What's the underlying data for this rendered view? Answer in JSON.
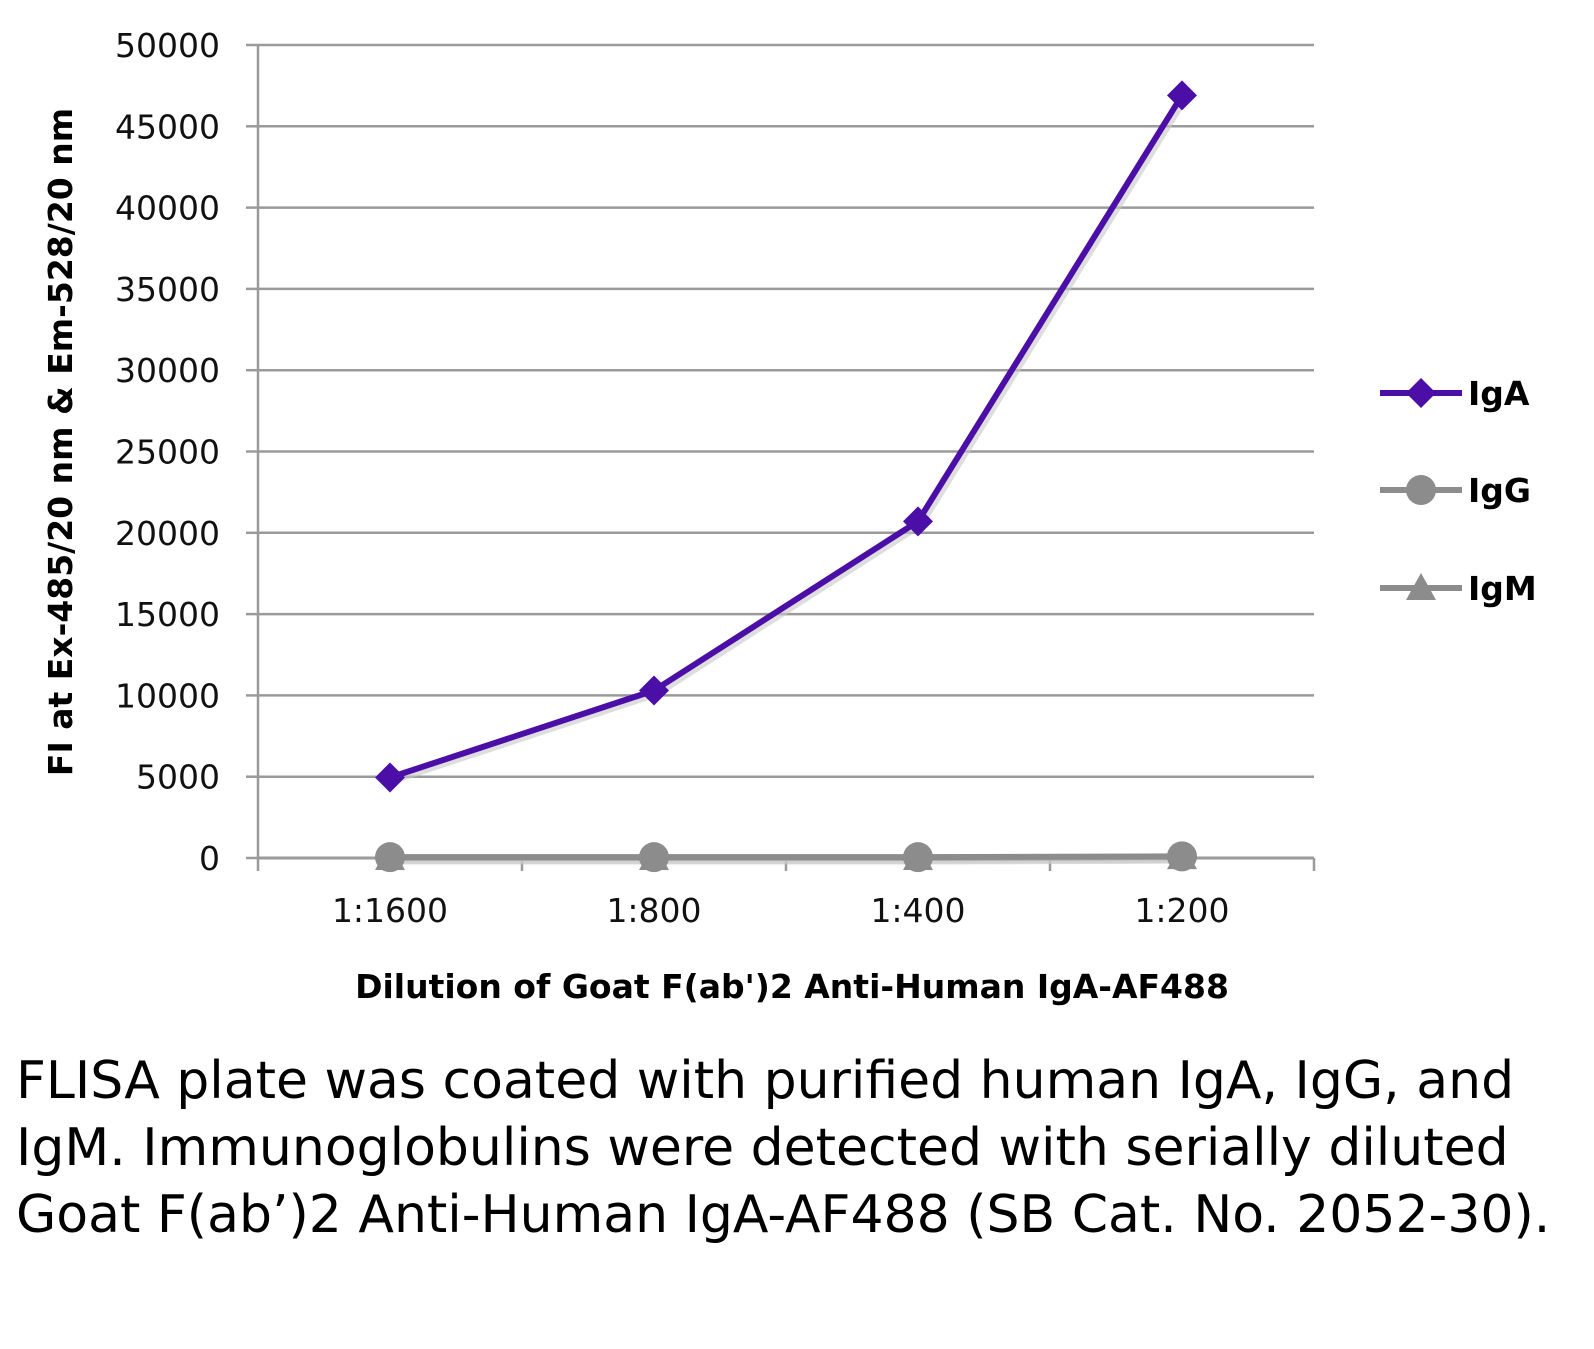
{
  "chart_data": {
    "type": "line",
    "title": "",
    "xlabel": "Dilution of Goat F(ab')2 Anti-Human IgA-AF488",
    "ylabel": "FI at Ex-485/20 nm & Em-528/20 nm",
    "categories": [
      "1:1600",
      "1:800",
      "1:400",
      "1:200"
    ],
    "ylim": [
      0,
      50000
    ],
    "yticks": [
      0,
      5000,
      10000,
      15000,
      20000,
      25000,
      30000,
      35000,
      40000,
      45000,
      50000
    ],
    "ytick_labels": [
      "0",
      "5000",
      "10000",
      "15000",
      "20000",
      "25000",
      "30000",
      "35000",
      "40000",
      "45000",
      "50000"
    ],
    "grid": true,
    "legend_position": "right",
    "series": [
      {
        "name": "IgA",
        "values": [
          4950,
          10300,
          20700,
          46900
        ],
        "color": "#4B0FA8",
        "marker": "diamond"
      },
      {
        "name": "IgG",
        "values": [
          50,
          50,
          50,
          100
        ],
        "color": "#8C8C8C",
        "marker": "circle"
      },
      {
        "name": "IgM",
        "values": [
          0,
          0,
          0,
          50
        ],
        "color": "#8C8C8C",
        "marker": "triangle"
      }
    ]
  },
  "caption": "FLISA plate was coated with purified human IgA, IgG, and IgM.  Immunoglobulins were detected with serially diluted Goat F(ab’)2 Anti-Human IgA-AF488 (SB Cat. No. 2052-30)."
}
